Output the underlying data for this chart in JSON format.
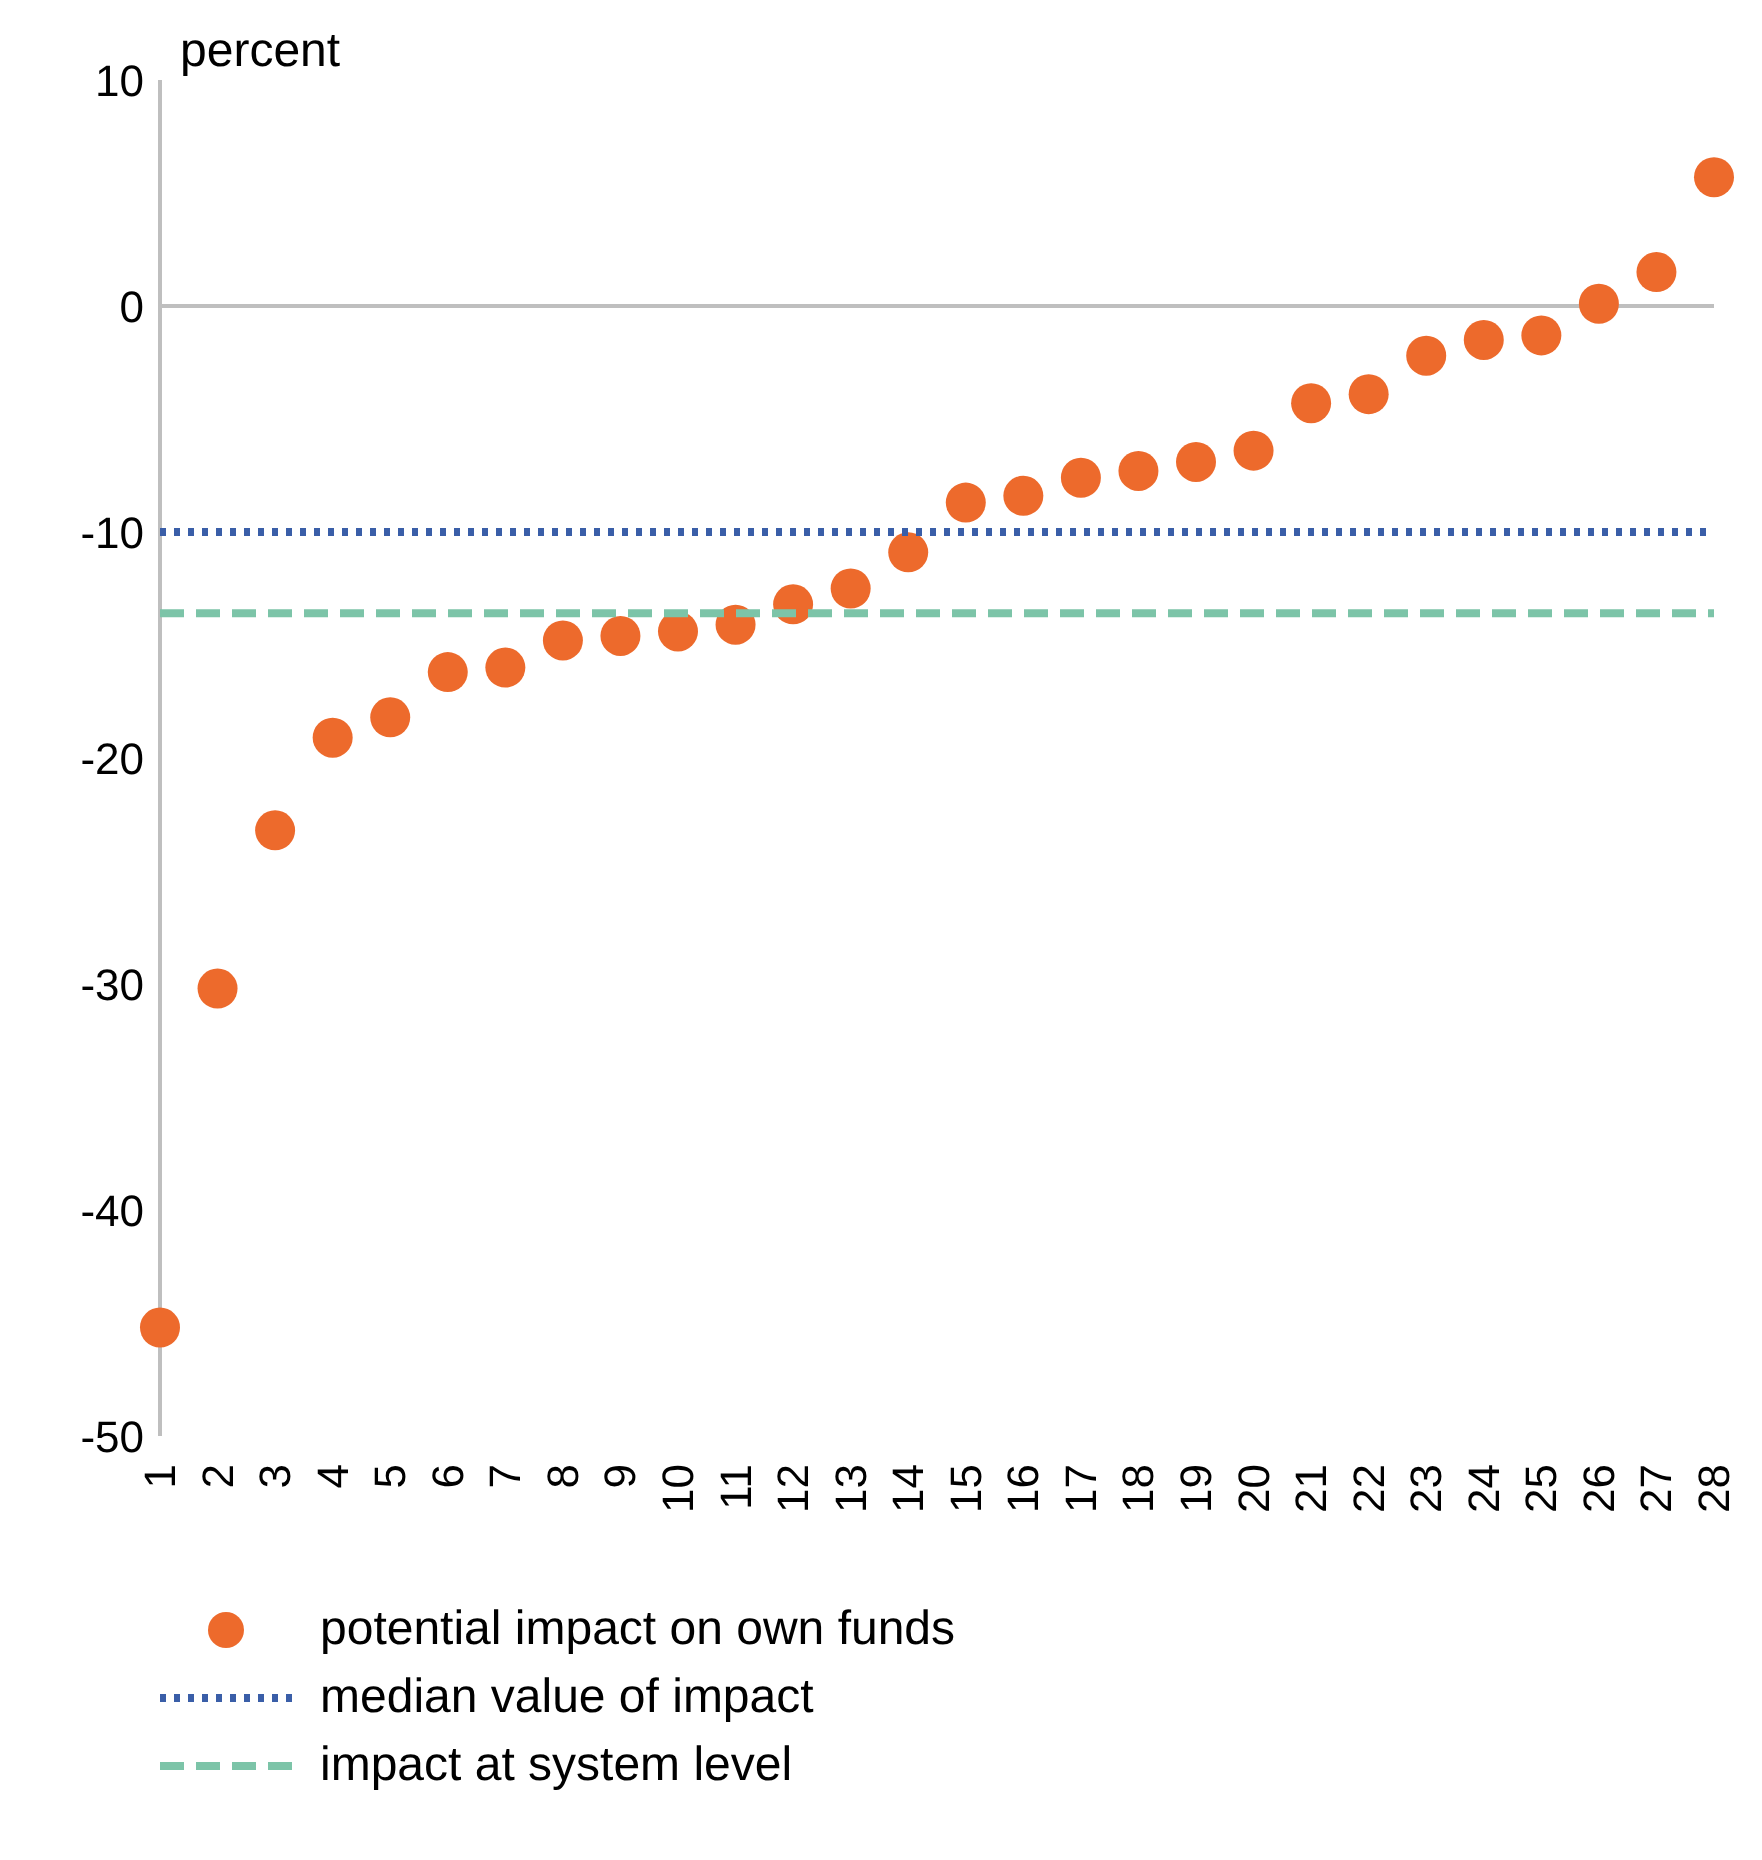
{
  "chart_data": {
    "type": "scatter",
    "ylabel": "percent",
    "categories": [
      "1",
      "2",
      "3",
      "4",
      "5",
      "6",
      "7",
      "8",
      "9",
      "10",
      "11",
      "12",
      "13",
      "14",
      "15",
      "16",
      "17",
      "18",
      "19",
      "20",
      "21",
      "22",
      "23",
      "24",
      "25",
      "26",
      "27",
      "28"
    ],
    "series": [
      {
        "name": "potential impact on own funds",
        "marker": "circle",
        "color": "#ed6a2c",
        "values": [
          -45.2,
          -30.2,
          -23.2,
          -19.1,
          -18.2,
          -16.2,
          -16.0,
          -14.8,
          -14.6,
          -14.4,
          -14.1,
          -13.2,
          -12.5,
          -10.9,
          -8.7,
          -8.4,
          -7.6,
          -7.3,
          -6.9,
          -6.4,
          -4.3,
          -3.9,
          -2.2,
          -1.5,
          -1.3,
          0.1,
          1.5,
          5.7
        ]
      },
      {
        "name": "median value of impact",
        "type": "line",
        "marker": "none",
        "line_style": "dotted",
        "color": "#3a5ea8",
        "values": [
          -10,
          -10,
          -10,
          -10,
          -10,
          -10,
          -10,
          -10,
          -10,
          -10,
          -10,
          -10,
          -10,
          -10,
          -10,
          -10,
          -10,
          -10,
          -10,
          -10,
          -10,
          -10,
          -10,
          -10,
          -10,
          -10,
          -10,
          -10
        ]
      },
      {
        "name": "impact at system level",
        "type": "line",
        "marker": "none",
        "line_style": "dashed",
        "color": "#7cc4a8",
        "values": [
          -13.6,
          -13.6,
          -13.6,
          -13.6,
          -13.6,
          -13.6,
          -13.6,
          -13.6,
          -13.6,
          -13.6,
          -13.6,
          -13.6,
          -13.6,
          -13.6,
          -13.6,
          -13.6,
          -13.6,
          -13.6,
          -13.6,
          -13.6,
          -13.6,
          -13.6,
          -13.6,
          -13.6,
          -13.6,
          -13.6,
          -13.6,
          -13.6
        ]
      }
    ],
    "ylim": [
      -50,
      10
    ],
    "yticks": [
      -50,
      -40,
      -30,
      -20,
      -10,
      0,
      10
    ],
    "grid": false,
    "legend": "bottom",
    "ref_lines": [
      {
        "axis": "y",
        "value": 0,
        "color": "#bfbfbf"
      }
    ]
  }
}
